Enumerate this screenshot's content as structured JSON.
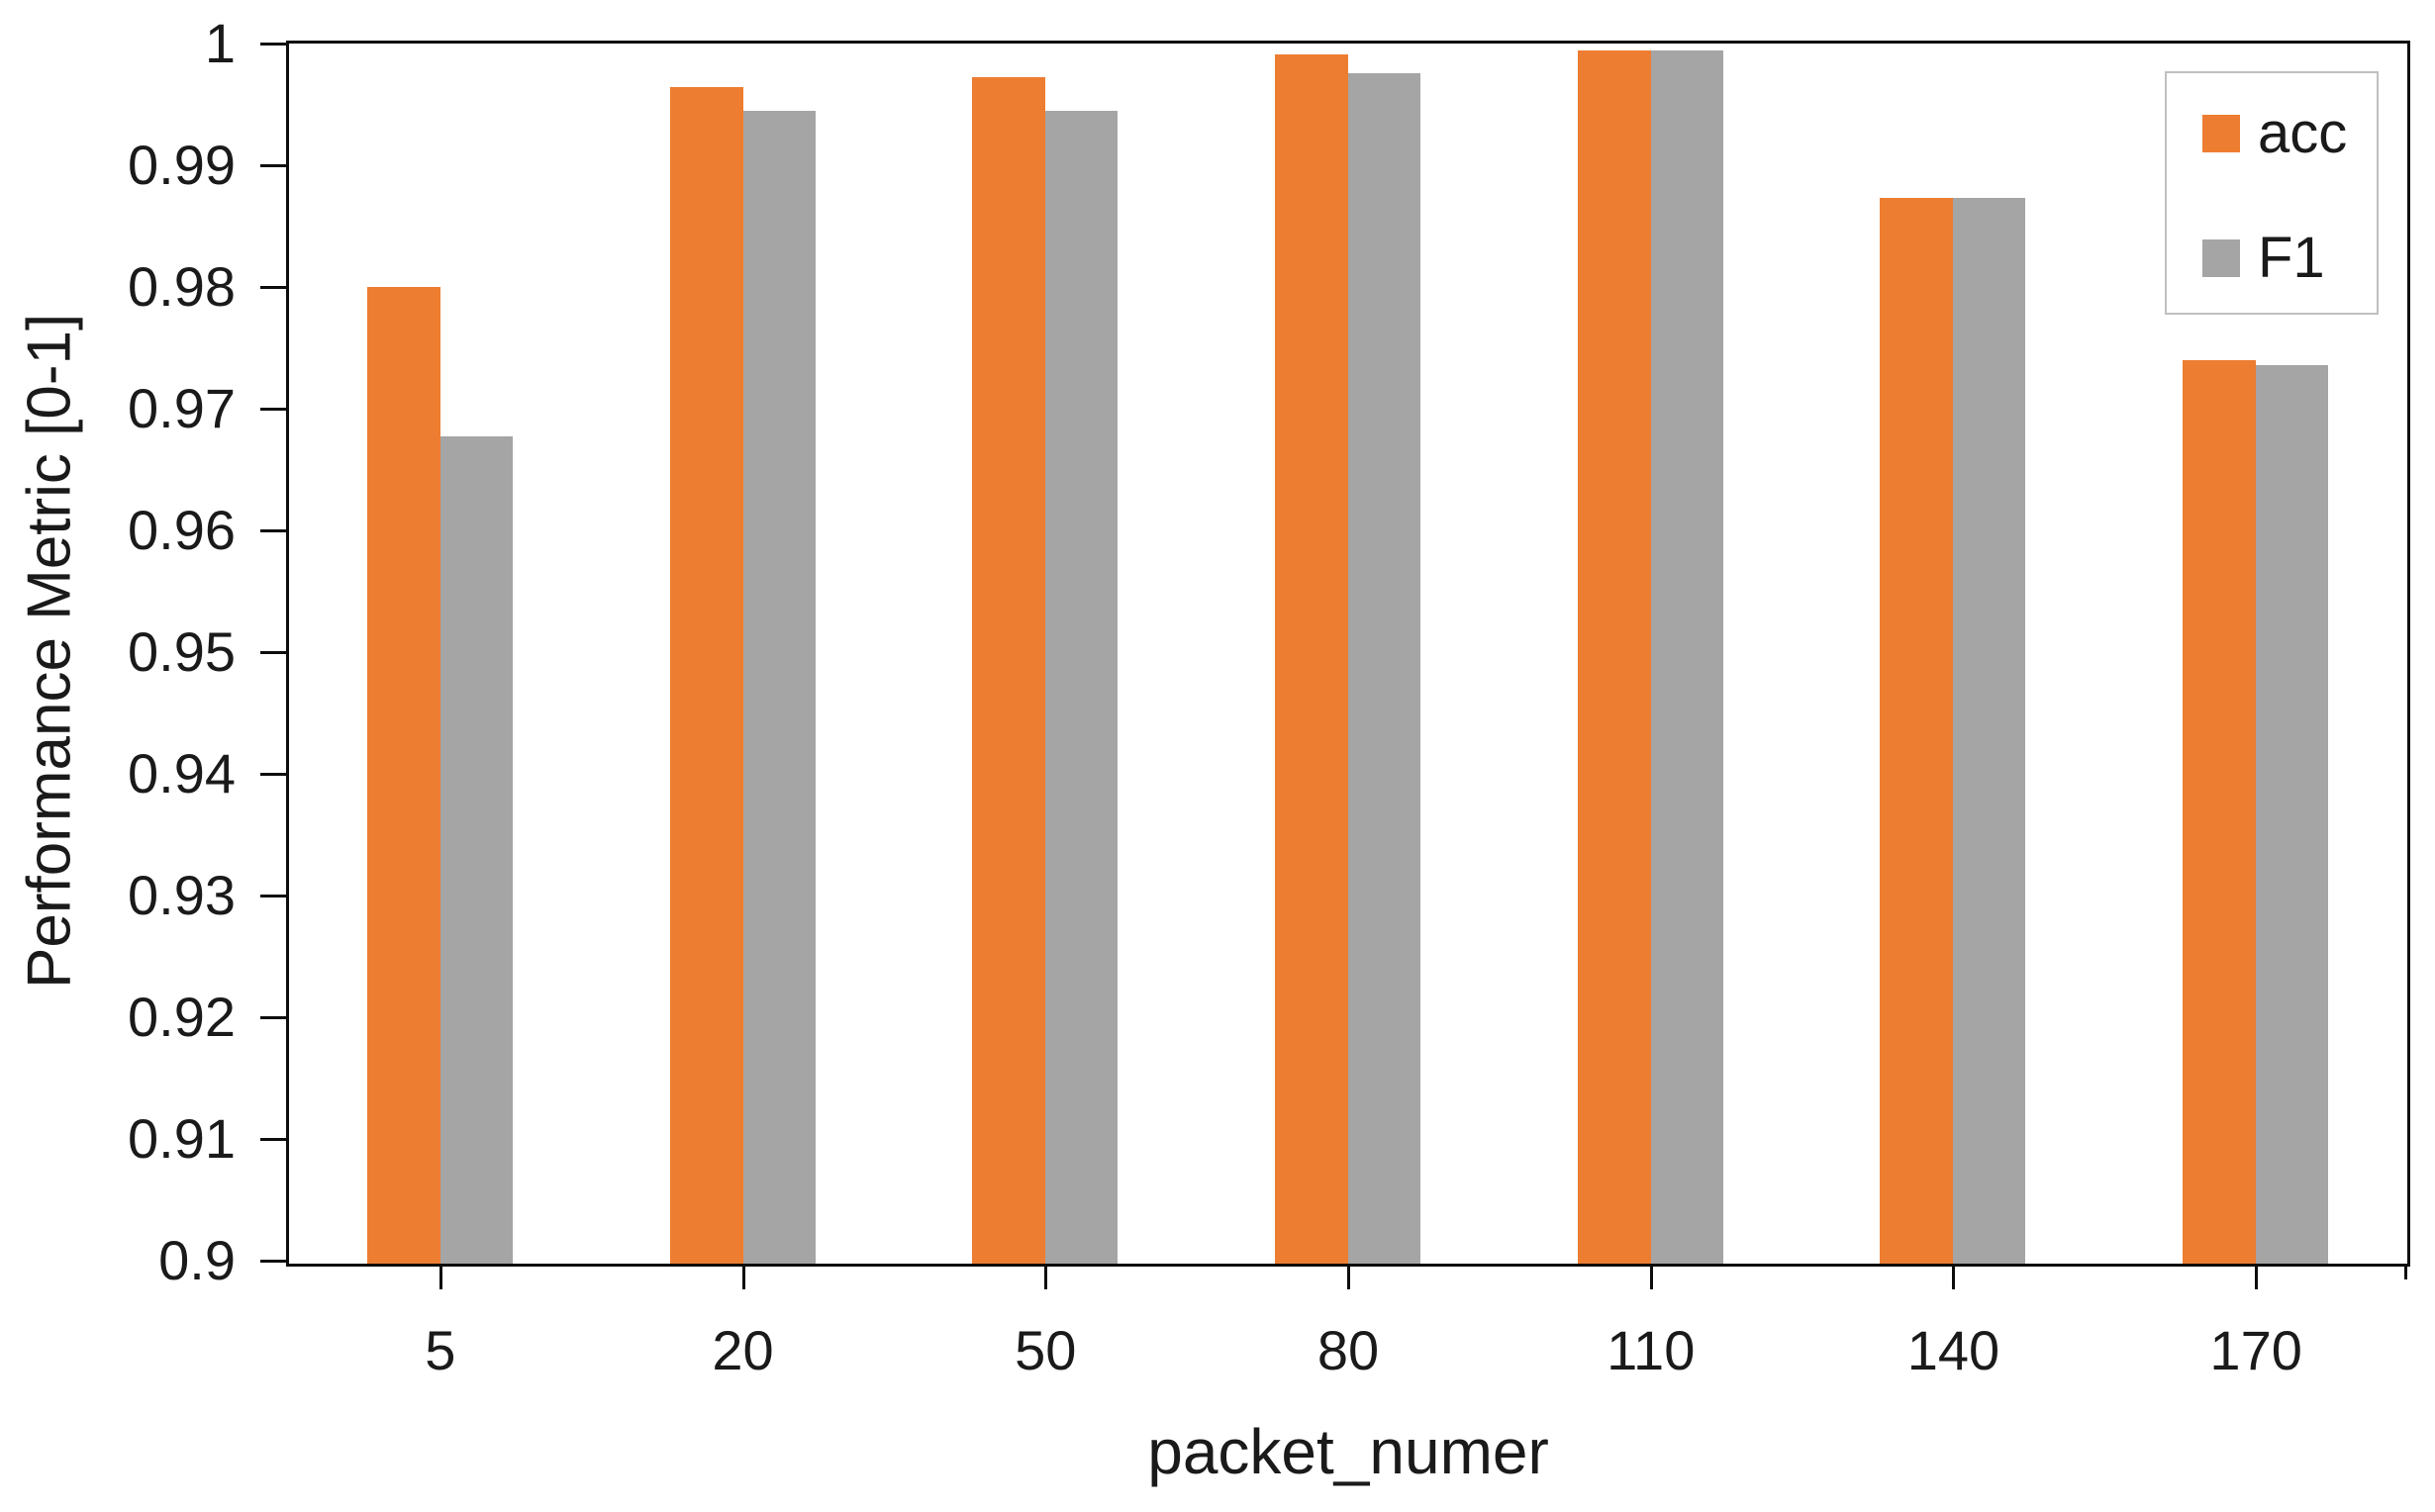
{
  "chart_data": {
    "type": "bar",
    "title": "",
    "xlabel": "packet_numer",
    "ylabel": "Performance Metric [0-1]",
    "categories": [
      "5",
      "20",
      "50",
      "80",
      "110",
      "140",
      "170"
    ],
    "series": [
      {
        "name": "acc",
        "color": "#ED7D31",
        "values": [
          0.98,
          0.9964,
          0.9972,
          0.9991,
          0.9994,
          0.9873,
          0.974
        ]
      },
      {
        "name": "F1",
        "color": "#A5A5A5",
        "values": [
          0.9677,
          0.9945,
          0.9945,
          0.9976,
          0.9994,
          0.9873,
          0.9736
        ]
      }
    ],
    "ylim": [
      0.9,
      1.0
    ],
    "ytick_step": 0.01,
    "ytick_labels": [
      "0.9",
      "0.91",
      "0.92",
      "0.93",
      "0.94",
      "0.95",
      "0.96",
      "0.97",
      "0.98",
      "0.99",
      "1"
    ],
    "grid": false,
    "legend_position": "top-right",
    "colors": {
      "axis_line": "#0d0d0d",
      "text": "#1a1a1a",
      "legend_border": "#c0c0c0",
      "background": "#ffffff"
    }
  }
}
